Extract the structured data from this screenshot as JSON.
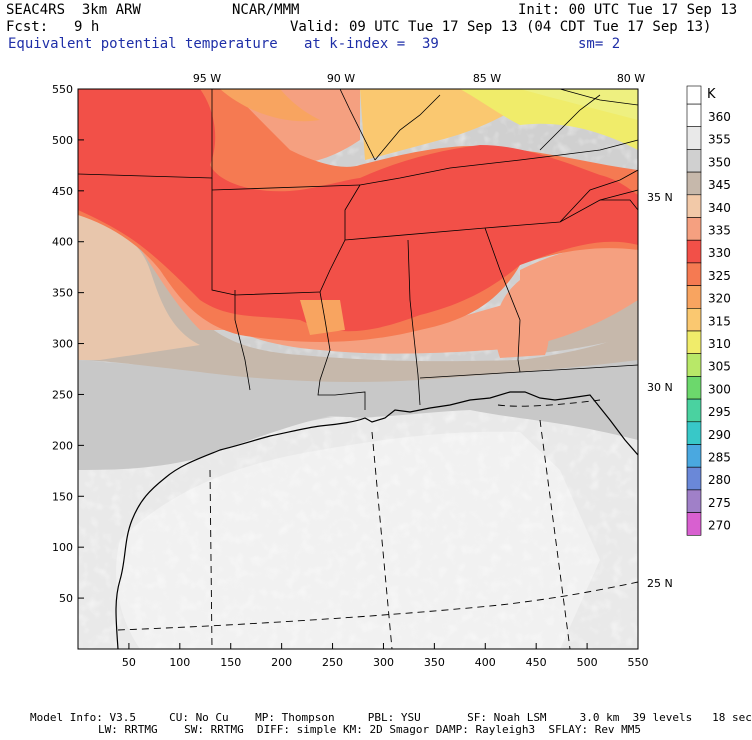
{
  "header": {
    "model": "SEAC4RS  3km ARW",
    "org": "NCAR/MMM",
    "init": "Init: 00 UTC Tue 17 Sep 13",
    "fcst_label": "Fcst:",
    "fcst_value": "9 h",
    "valid": "Valid: 09 UTC Tue 17 Sep 13 (04 CDT Tue 17 Sep 13)",
    "field": "Equivalent potential temperature",
    "at_level": "at k-index =  39",
    "smoothing": "sm= 2"
  },
  "map": {
    "x_ticks": [
      "50",
      "100",
      "150",
      "200",
      "250",
      "300",
      "350",
      "400",
      "450",
      "500",
      "550"
    ],
    "y_ticks": [
      "550",
      "500",
      "450",
      "400",
      "350",
      "300",
      "250",
      "200",
      "150",
      "100",
      "50"
    ],
    "lon_labels": [
      "95 W",
      "90 W",
      "85 W",
      "80 W"
    ],
    "lat_labels": [
      "35 N",
      "30 N",
      "25 N"
    ]
  },
  "colorbar": {
    "unit": "K",
    "levels": [
      "360",
      "355",
      "350",
      "345",
      "340",
      "335",
      "330",
      "325",
      "320",
      "315",
      "310",
      "305",
      "300",
      "295",
      "290",
      "285",
      "280",
      "275",
      "270"
    ],
    "colors": [
      "#ffffff",
      "#e9e9e9",
      "#d0d0d0",
      "#c6b8ab",
      "#f2c9a8",
      "#f5a080",
      "#f25048",
      "#f57a52",
      "#f8a460",
      "#fac870",
      "#f0ec6a",
      "#b8e868",
      "#6cd86c",
      "#4ad2a0",
      "#38c8c8",
      "#4aa8e0",
      "#6a88d8",
      "#a080c8",
      "#d860d0"
    ]
  },
  "footer": {
    "line1": "Model Info: V3.5     CU: No Cu    MP: Thompson     PBL: YSU       SF: Noah LSM     3.0 km  39 levels   18 sec",
    "line2": "LW: RRTMG    SW: RRTMG  DIFF: simple KM: 2D Smagor DAMP: Rayleigh3  SFLAY: Rev MM5"
  }
}
